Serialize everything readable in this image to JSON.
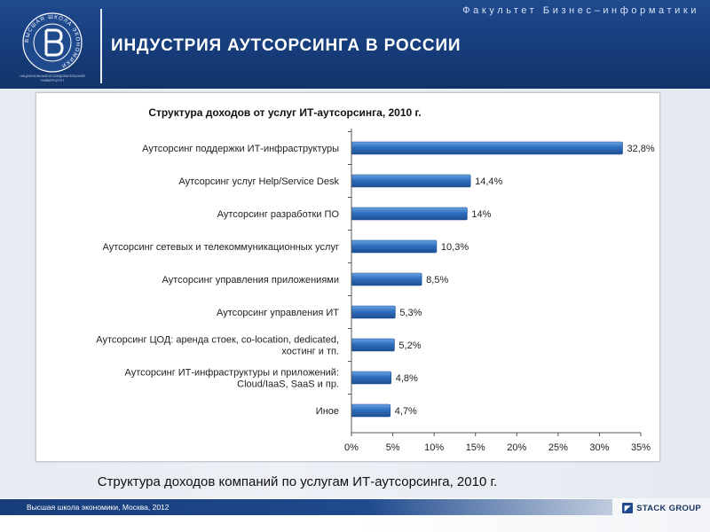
{
  "header": {
    "faculty": "Факультет Бизнес–информатики",
    "title": "ИНДУСТРИЯ АУТСОРСИНГА В РОССИИ",
    "logo_caption": "НАЦИОНАЛЬНЫЙ ИССЛЕДОВАТЕЛЬСКИЙ УНИВЕРСИТЕТ",
    "logo_ring_text": "ВЫСШАЯ ШКОЛА ЭКОНОМИКИ"
  },
  "caption": "Структура доходов компаний по услугам ИТ-аутсорсинга, 2010 г.",
  "footer": {
    "text": "Высшая школа экономики, Москва, 2012",
    "partner": "STACK GROUP"
  },
  "colors": {
    "bar": "#2f6fbf",
    "bar_light": "#6aa3e3",
    "header": "#1f4a8e"
  },
  "chart_data": {
    "type": "bar",
    "orientation": "horizontal",
    "title": "Структура доходов от услуг ИТ-аутсорсинга, 2010 г.",
    "categories": [
      [
        "Аутсорсинг поддержки ИТ-инфраструктуры"
      ],
      [
        "Аутсорсинг услуг Help/Service Desk"
      ],
      [
        "Аутсорсинг разработки ПО"
      ],
      [
        "Аутсорсинг сетевых и телекоммуникационных услуг"
      ],
      [
        "Аутсорсинг управления приложениями"
      ],
      [
        "Аутсорсинг управления ИТ"
      ],
      [
        "Аутсорсинг ЦОД: аренда стоек, co-location, dedicated,",
        "хостинг и тп."
      ],
      [
        "Аутсорсинг ИТ-инфраструктуры и приложений:",
        "Cloud/IaaS, SaaS и пр."
      ],
      [
        "Иное"
      ]
    ],
    "values": [
      32.8,
      14.4,
      14,
      10.3,
      8.5,
      5.3,
      5.2,
      4.8,
      4.7
    ],
    "value_labels": [
      "32,8%",
      "14,4%",
      "14%",
      "10,3%",
      "8,5%",
      "5,3%",
      "5,2%",
      "4,8%",
      "4,7%"
    ],
    "xlim": [
      0,
      35
    ],
    "xticks": [
      0,
      5,
      10,
      15,
      20,
      25,
      30,
      35
    ],
    "xtick_labels": [
      "0%",
      "5%",
      "10%",
      "15%",
      "20%",
      "25%",
      "30%",
      "35%"
    ],
    "xlabel": "",
    "ylabel": "",
    "grid": false,
    "legend": "none"
  }
}
